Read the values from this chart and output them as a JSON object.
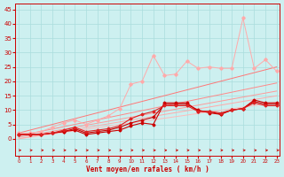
{
  "background_color": "#cdf0f0",
  "grid_color": "#aadddd",
  "xlabel": "Vent moyen/en rafales ( km/h )",
  "x": [
    0,
    1,
    2,
    3,
    4,
    5,
    6,
    7,
    8,
    9,
    10,
    11,
    12,
    13,
    14,
    15,
    16,
    17,
    18,
    19,
    20,
    21,
    22,
    23
  ],
  "pink_line": [
    2.0,
    2.0,
    2.5,
    4.0,
    5.5,
    6.5,
    5.0,
    6.5,
    8.0,
    10.5,
    19.0,
    20.0,
    29.0,
    22.0,
    22.5,
    27.0,
    24.5,
    25.0,
    24.5,
    24.5,
    42.0,
    24.5,
    27.5,
    23.5
  ],
  "red_line1": [
    1.5,
    1.5,
    1.5,
    2.0,
    2.5,
    3.0,
    1.5,
    2.0,
    2.5,
    3.0,
    4.5,
    5.5,
    5.0,
    12.5,
    12.5,
    12.5,
    9.5,
    9.5,
    8.5,
    10.0,
    10.5,
    13.5,
    12.5,
    12.5
  ],
  "red_line2": [
    1.5,
    1.5,
    1.5,
    2.0,
    2.5,
    3.5,
    2.0,
    2.5,
    3.0,
    4.0,
    5.5,
    6.5,
    7.5,
    12.0,
    12.0,
    12.0,
    10.0,
    9.0,
    8.5,
    10.0,
    10.5,
    13.0,
    12.0,
    12.0
  ],
  "red_line3": [
    1.5,
    1.5,
    1.5,
    2.0,
    3.0,
    4.0,
    2.5,
    3.0,
    3.5,
    4.5,
    7.0,
    8.5,
    9.5,
    11.5,
    11.5,
    11.5,
    9.5,
    9.5,
    9.0,
    10.0,
    10.5,
    12.5,
    11.5,
    11.5
  ],
  "diag1": [
    0.0,
    0.55,
    1.1,
    1.65,
    2.2,
    2.75,
    3.3,
    3.85,
    4.4,
    4.95,
    5.5,
    6.05,
    6.6,
    7.15,
    7.7,
    8.25,
    8.8,
    9.35,
    9.9,
    10.45,
    11.0,
    11.55,
    12.1,
    12.65
  ],
  "diag2": [
    0.0,
    0.65,
    1.3,
    1.95,
    2.6,
    3.25,
    3.9,
    4.55,
    5.2,
    5.85,
    6.5,
    7.15,
    7.8,
    8.45,
    9.1,
    9.75,
    10.4,
    11.05,
    11.7,
    12.35,
    13.0,
    13.65,
    14.3,
    14.95
  ],
  "diag3": [
    0.5,
    1.2,
    1.9,
    2.6,
    3.3,
    4.0,
    4.7,
    5.4,
    6.1,
    6.8,
    7.5,
    8.2,
    8.9,
    9.6,
    10.3,
    11.0,
    11.7,
    12.4,
    13.1,
    13.8,
    14.5,
    15.2,
    15.9,
    16.6
  ],
  "diag4": [
    1.0,
    1.8,
    2.6,
    3.4,
    4.2,
    5.0,
    5.8,
    6.6,
    7.4,
    8.2,
    9.0,
    9.8,
    10.6,
    11.4,
    12.2,
    13.0,
    13.8,
    14.6,
    15.4,
    16.2,
    17.0,
    17.8,
    18.6,
    19.4
  ],
  "diag5": [
    2.0,
    3.0,
    4.0,
    5.0,
    6.0,
    7.0,
    8.0,
    9.0,
    10.0,
    11.0,
    12.0,
    13.0,
    14.0,
    15.0,
    16.0,
    17.0,
    18.0,
    19.0,
    20.0,
    21.0,
    22.0,
    23.0,
    24.0,
    25.0
  ],
  "color_dark_red": "#cc0000",
  "color_med_red": "#ee3333",
  "color_pink": "#ffaaaa",
  "color_pink2": "#ff8888",
  "ylim": [
    -6,
    47
  ],
  "xlim": [
    -0.3,
    23.3
  ]
}
